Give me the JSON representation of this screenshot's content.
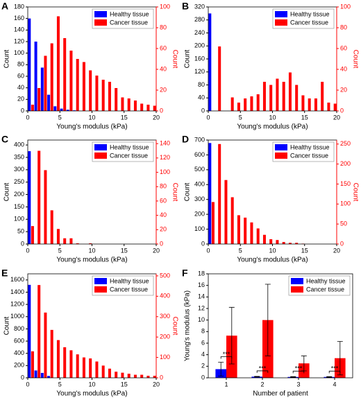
{
  "chart_data": [
    {
      "type": "histogram",
      "label": "A",
      "x_label": "Young's modulus (kPa)",
      "y_label": "Count",
      "y2_label": "Count",
      "bins": [
        0,
        1,
        2,
        3,
        4,
        5,
        6,
        7,
        8,
        9,
        10,
        11,
        12,
        13,
        14,
        15,
        16,
        17,
        18,
        19,
        20
      ],
      "xlim": [
        0,
        20
      ],
      "xticks": [
        0,
        5,
        10,
        15,
        20
      ],
      "ylim": [
        0,
        180
      ],
      "yticks": [
        0,
        20,
        40,
        60,
        80,
        100,
        120,
        140,
        160,
        180
      ],
      "y2lim": [
        0,
        100
      ],
      "y2ticks": [
        0,
        20,
        40,
        60,
        80,
        100
      ],
      "legend": "upper right",
      "series": [
        {
          "name": "Healthy tissue",
          "color": "#0000ff",
          "values": [
            160,
            120,
            75,
            28,
            8,
            4,
            2,
            1,
            0,
            0,
            0,
            0,
            0,
            0,
            0,
            0,
            0,
            0,
            0,
            0
          ]
        },
        {
          "name": "Cancer tissue",
          "color": "#ff0000",
          "axis": "y2",
          "values": [
            6,
            22,
            53,
            65,
            91,
            70,
            58,
            50,
            47,
            39,
            34,
            30,
            28,
            22,
            13,
            12,
            10,
            7,
            6,
            5
          ]
        }
      ]
    },
    {
      "type": "histogram",
      "label": "B",
      "x_label": "Young's modulus (kPa)",
      "y_label": "Count",
      "y2_label": "Count",
      "bins": [
        0,
        1,
        2,
        3,
        4,
        5,
        6,
        7,
        8,
        9,
        10,
        11,
        12,
        13,
        14,
        15,
        16,
        17,
        18,
        19,
        20
      ],
      "xlim": [
        0,
        20
      ],
      "xticks": [
        0,
        5,
        10,
        15,
        20
      ],
      "ylim": [
        0,
        320
      ],
      "yticks": [
        0,
        40,
        80,
        120,
        160,
        200,
        240,
        280,
        320
      ],
      "y2lim": [
        0,
        100
      ],
      "y2ticks": [
        0,
        20,
        40,
        60,
        80,
        100
      ],
      "legend": "upper right",
      "series": [
        {
          "name": "Healthy tissue",
          "color": "#0000ff",
          "values": [
            300,
            0,
            0,
            0,
            0,
            0,
            0,
            0,
            0,
            0,
            0,
            0,
            0,
            0,
            0,
            0,
            0,
            0,
            0,
            0
          ]
        },
        {
          "name": "Cancer tissue",
          "color": "#ff0000",
          "axis": "y2",
          "values": [
            0,
            62,
            0,
            13,
            8,
            12,
            14,
            16,
            28,
            25,
            31,
            28,
            37,
            25,
            15,
            12,
            12,
            28,
            8,
            7
          ]
        }
      ]
    },
    {
      "type": "histogram",
      "label": "C",
      "x_label": "Young's modulus (kPa)",
      "y_label": "Count",
      "y2_label": "Count",
      "bins": [
        0,
        1,
        2,
        3,
        4,
        5,
        6,
        7,
        8,
        9,
        10,
        11,
        12,
        13,
        14,
        15,
        16,
        17,
        18,
        19,
        20
      ],
      "xlim": [
        0,
        20
      ],
      "xticks": [
        0,
        5,
        10,
        15,
        20
      ],
      "ylim": [
        0,
        420
      ],
      "yticks": [
        0,
        50,
        100,
        150,
        200,
        250,
        300,
        350,
        400
      ],
      "y2lim": [
        0,
        145
      ],
      "y2ticks": [
        0,
        20,
        40,
        60,
        80,
        100,
        120,
        140
      ],
      "legend": "upper right",
      "series": [
        {
          "name": "Healthy tissue",
          "color": "#0000ff",
          "values": [
            375,
            0,
            0,
            0,
            0,
            0,
            0,
            0,
            0,
            0,
            0,
            0,
            0,
            0,
            0,
            0,
            0,
            0,
            0,
            0
          ]
        },
        {
          "name": "Cancer tissue",
          "color": "#ff0000",
          "axis": "y2",
          "values": [
            25,
            130,
            103,
            47,
            21,
            8,
            8,
            1,
            0,
            1,
            0,
            0,
            0,
            0,
            0,
            0,
            0,
            0,
            0,
            0
          ]
        }
      ]
    },
    {
      "type": "histogram",
      "label": "D",
      "x_label": "Young's modulus (kPa)",
      "y_label": "Count",
      "y2_label": "Count",
      "bins": [
        0,
        1,
        2,
        3,
        4,
        5,
        6,
        7,
        8,
        9,
        10,
        11,
        12,
        13,
        14,
        15,
        16,
        17,
        18,
        19,
        20
      ],
      "xlim": [
        0,
        20
      ],
      "xticks": [
        0,
        5,
        10,
        15,
        20
      ],
      "ylim": [
        0,
        700
      ],
      "yticks": [
        0,
        100,
        200,
        300,
        400,
        500,
        600,
        700
      ],
      "y2lim": [
        0,
        260
      ],
      "y2ticks": [
        0,
        50,
        100,
        150,
        200,
        250
      ],
      "legend": "upper right",
      "series": [
        {
          "name": "Healthy tissue",
          "color": "#0000ff",
          "values": [
            680,
            0,
            0,
            0,
            0,
            0,
            0,
            0,
            0,
            0,
            0,
            0,
            0,
            0,
            0,
            0,
            0,
            0,
            0,
            0
          ]
        },
        {
          "name": "Cancer tissue",
          "color": "#ff0000",
          "axis": "y2",
          "values": [
            105,
            250,
            160,
            117,
            72,
            66,
            54,
            39,
            23,
            12,
            10,
            5,
            3,
            3,
            1,
            0,
            0,
            0,
            0,
            0
          ]
        }
      ]
    },
    {
      "type": "histogram",
      "label": "E",
      "x_label": "Young's modulus (kPa)",
      "y_label": "Count",
      "y2_label": "Count",
      "bins": [
        0,
        1,
        2,
        3,
        4,
        5,
        6,
        7,
        8,
        9,
        10,
        11,
        12,
        13,
        14,
        15,
        16,
        17,
        18,
        19,
        20
      ],
      "xlim": [
        0,
        20
      ],
      "xticks": [
        0,
        5,
        10,
        15,
        20
      ],
      "ylim": [
        0,
        1700
      ],
      "yticks": [
        0,
        200,
        400,
        600,
        800,
        1000,
        1200,
        1400,
        1600
      ],
      "y2lim": [
        0,
        510
      ],
      "y2ticks": [
        0,
        100,
        200,
        300,
        400,
        500
      ],
      "legend": "upper right",
      "series": [
        {
          "name": "Healthy tissue",
          "color": "#0000ff",
          "values": [
            1520,
            120,
            80,
            30,
            0,
            0,
            0,
            0,
            0,
            0,
            0,
            0,
            0,
            0,
            0,
            0,
            0,
            0,
            0,
            0
          ]
        },
        {
          "name": "Cancer tissue",
          "color": "#ff0000",
          "axis": "y2",
          "values": [
            130,
            455,
            320,
            235,
            185,
            150,
            135,
            115,
            100,
            95,
            80,
            60,
            45,
            30,
            25,
            20,
            15,
            15,
            10,
            10
          ]
        }
      ]
    },
    {
      "type": "bar",
      "label": "F",
      "x_label": "Number of patient",
      "y_label": "Young's modulus (kPa)",
      "categories": [
        "1",
        "2",
        "3",
        "4"
      ],
      "ylim": [
        0,
        18
      ],
      "yticks": [
        0,
        2,
        4,
        6,
        8,
        10,
        12,
        14,
        16,
        18
      ],
      "legend": "upper right",
      "annotations": [
        "***",
        "***",
        "***",
        "***"
      ],
      "series": [
        {
          "name": "Healthy tissue",
          "color": "#0000ff",
          "values": [
            1.5,
            0.2,
            0.15,
            0.15
          ],
          "errors": [
            1.2,
            0.05,
            0.05,
            0.05
          ]
        },
        {
          "name": "Cancer tissue",
          "color": "#ff0000",
          "values": [
            7.3,
            10,
            2.5,
            3.4
          ],
          "errors": [
            4.9,
            6.2,
            1.3,
            2.9
          ]
        }
      ]
    }
  ]
}
